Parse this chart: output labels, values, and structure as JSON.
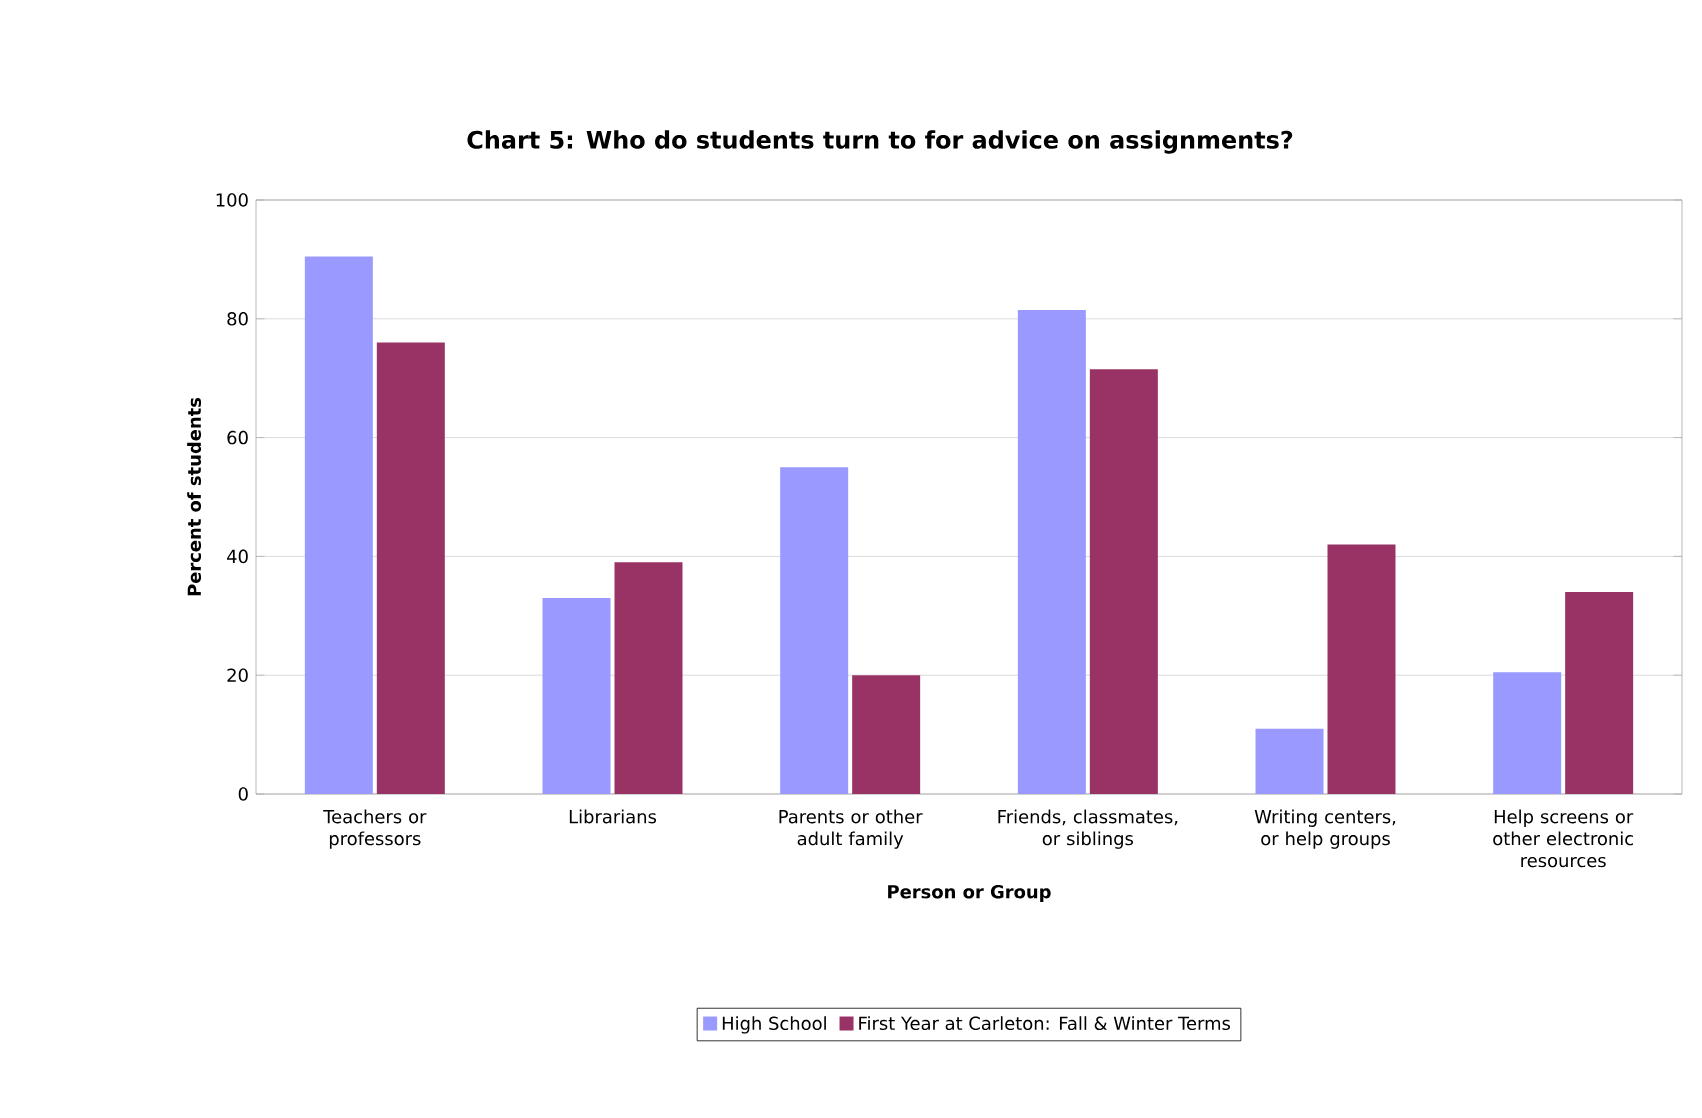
{
  "chart_data": {
    "type": "bar",
    "title": "Chart 5:  Who do students turn to for advice on assignments?",
    "xlabel": "Person or Group",
    "ylabel": "Percent of students",
    "categories": [
      "Teachers or professors",
      "Librarians",
      "Parents or other adult family",
      "Friends, classmates, or siblings",
      "Writing centers, or help groups",
      "Help screens or other electronic resources"
    ],
    "series": [
      {
        "name": "High School",
        "color": "#9999ff",
        "values": [
          90.5,
          33,
          55,
          81.5,
          11,
          20.5
        ]
      },
      {
        "name": "First Year at Carleton: Fall & Winter Terms",
        "color": "#993366",
        "values": [
          76,
          39,
          20,
          71.5,
          42,
          34
        ]
      }
    ],
    "ylim": [
      0,
      100
    ],
    "yticks": [
      0,
      20,
      40,
      60,
      80,
      100
    ],
    "grid": "y",
    "legend": "bottom"
  }
}
